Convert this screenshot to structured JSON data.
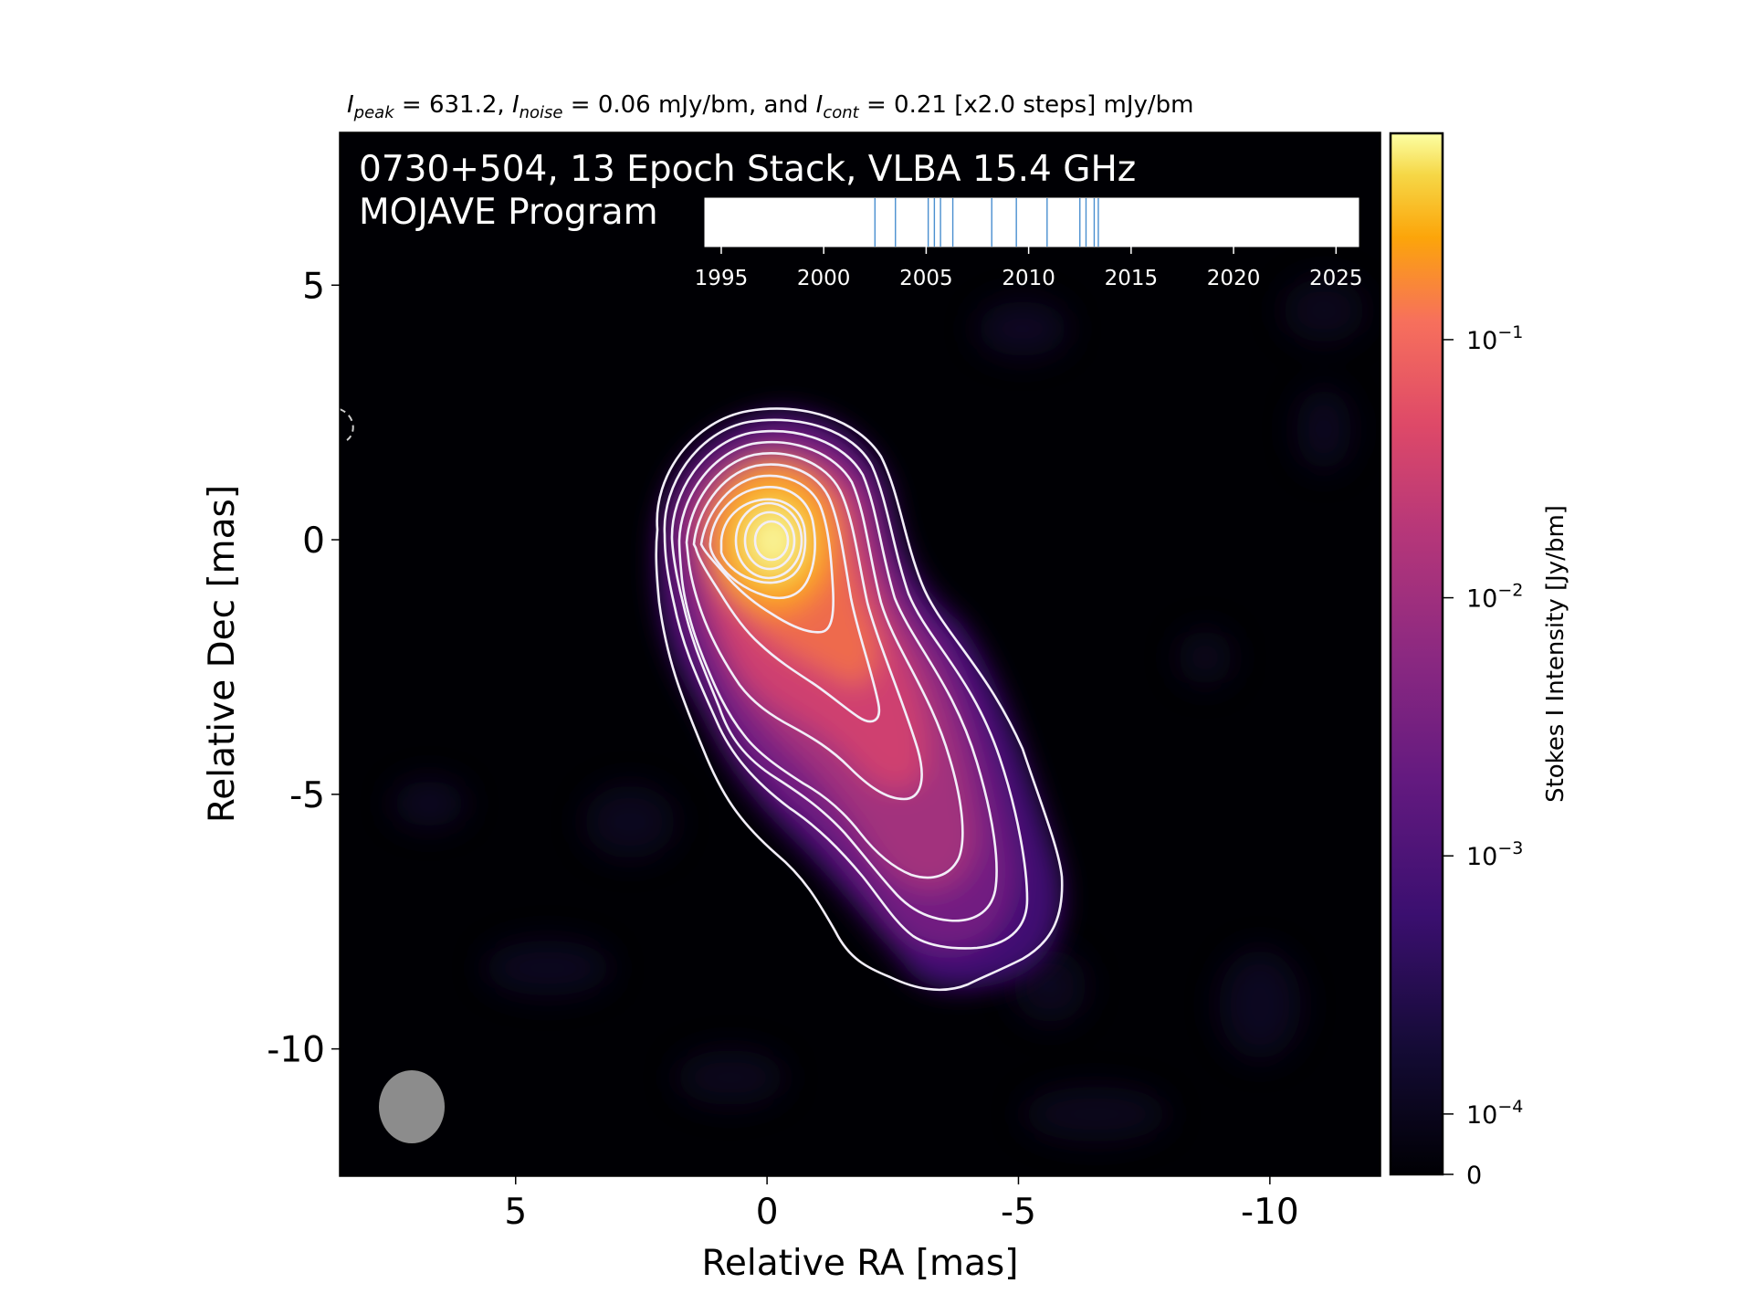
{
  "chart_data": {
    "type": "heatmap",
    "header": {
      "peak_value": "631.2",
      "noise_value": "0.06 mJy/bm",
      "cont_value": "0.21 [x2.0 steps] mJy/bm",
      "and_word": "and"
    },
    "title_line1": "0730+504, 13 Epoch Stack, VLBA 15.4 GHz",
    "title_line2": "MOJAVE Program",
    "xlabel": "Relative RA [mas]",
    "ylabel": "Relative Dec [mas]",
    "xlim": [
      8.5,
      -12.2
    ],
    "ylim": [
      -12.5,
      8.0
    ],
    "x_ticks": [
      "5",
      "0",
      "-5",
      "-10"
    ],
    "x_tick_values": [
      5,
      0,
      -5,
      -10
    ],
    "y_ticks": [
      "5",
      "0",
      "-5",
      "-10"
    ],
    "y_tick_values": [
      5,
      0,
      -5,
      -10
    ],
    "colorbar": {
      "label": "Stokes I Intensity [Jy/bm]",
      "scale": "log",
      "colormap": "inferno",
      "range": [
        0,
        0.63
      ],
      "ticks": [
        {
          "label": "10",
          "exp": "−1",
          "value": 0.1
        },
        {
          "label": "10",
          "exp": "−2",
          "value": 0.01
        },
        {
          "label": "10",
          "exp": "−3",
          "value": 0.001
        },
        {
          "label": "10",
          "exp": "−4",
          "value": 0.0001
        },
        {
          "label": "0",
          "exp": "",
          "value": 0
        }
      ]
    },
    "epoch_timeline": {
      "ticks": [
        "1995",
        "2000",
        "2005",
        "2010",
        "2015",
        "2020",
        "2025"
      ],
      "tick_values": [
        1995,
        2000,
        2005,
        2010,
        2015,
        2020,
        2025
      ],
      "range": [
        1994.2,
        2026.1
      ],
      "epochs": [
        2002.5,
        2003.5,
        2005.1,
        2005.4,
        2005.7,
        2006.3,
        2008.2,
        2009.4,
        2010.9,
        2012.5,
        2012.8,
        2013.2,
        2013.4
      ],
      "line_color": "#4a8fd0"
    },
    "contour_levels_jy": [
      0.00021,
      0.00042,
      0.00084,
      0.00168,
      0.00336,
      0.00672,
      0.01344,
      0.02688,
      0.05376,
      0.10752,
      0.21504,
      0.43008
    ],
    "contour_color": "#f2eef8",
    "peak_position": [
      0,
      0
    ],
    "beam": {
      "ra_center": 7.1,
      "dec_center": -11.3,
      "color": "#8c8c8c"
    },
    "colors": {
      "background": "#000004",
      "peak": "#fcffa4"
    }
  }
}
